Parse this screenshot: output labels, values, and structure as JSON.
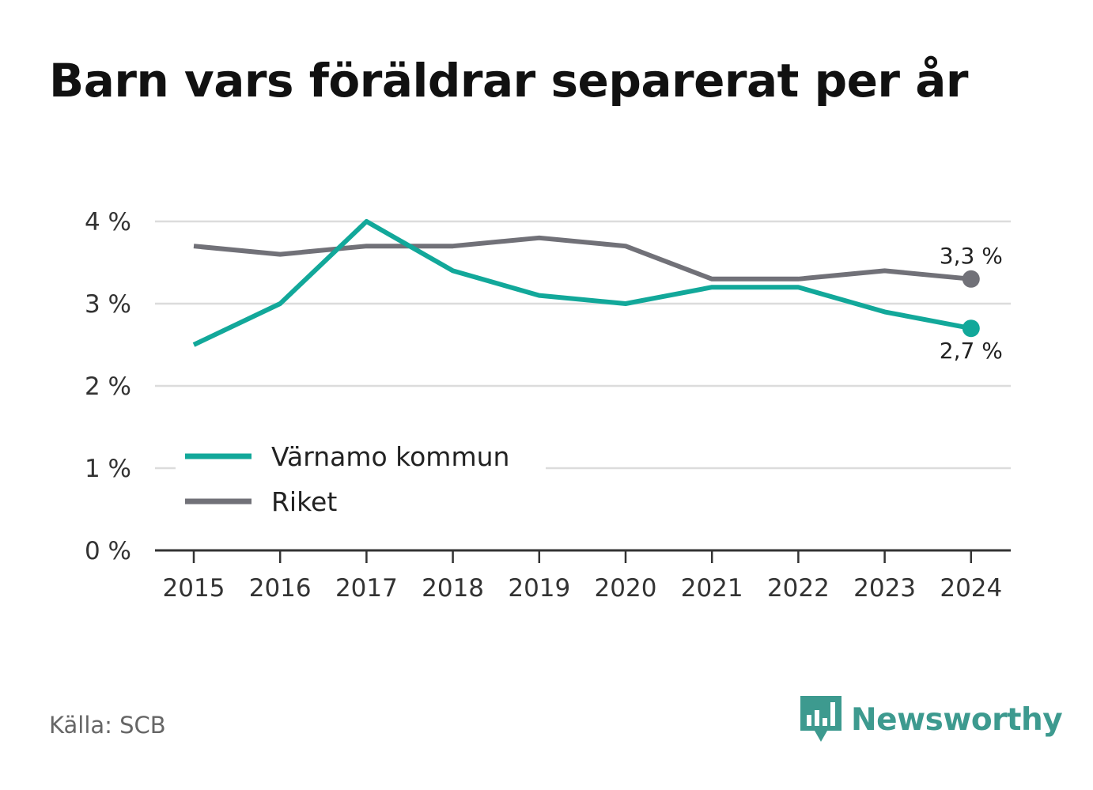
{
  "header": {
    "title": "Barn vars föräldrar separerat per år"
  },
  "footer": {
    "source": "Källa: SCB",
    "brand": "Newsworthy"
  },
  "chart_data": {
    "type": "line",
    "title": "Barn vars föräldrar separerat per år",
    "x": [
      "2015",
      "2016",
      "2017",
      "2018",
      "2019",
      "2020",
      "2021",
      "2022",
      "2023",
      "2024"
    ],
    "ylim": [
      0,
      4
    ],
    "y_ticks": [
      0,
      1,
      2,
      3,
      4
    ],
    "y_tick_labels": [
      "0 %",
      "1 %",
      "2 %",
      "3 %",
      "4 %"
    ],
    "grid": true,
    "legend_placement": "bottom-left",
    "series": [
      {
        "name": "Värnamo kommun",
        "color": "#12a89a",
        "values": [
          2.5,
          3.0,
          4.0,
          3.4,
          3.1,
          3.0,
          3.2,
          3.2,
          2.9,
          2.7
        ],
        "end_label": "2,7 %"
      },
      {
        "name": "Riket",
        "color": "#717178",
        "values": [
          3.7,
          3.6,
          3.7,
          3.7,
          3.8,
          3.7,
          3.3,
          3.3,
          3.4,
          3.3
        ],
        "end_label": "3,3 %"
      }
    ]
  }
}
